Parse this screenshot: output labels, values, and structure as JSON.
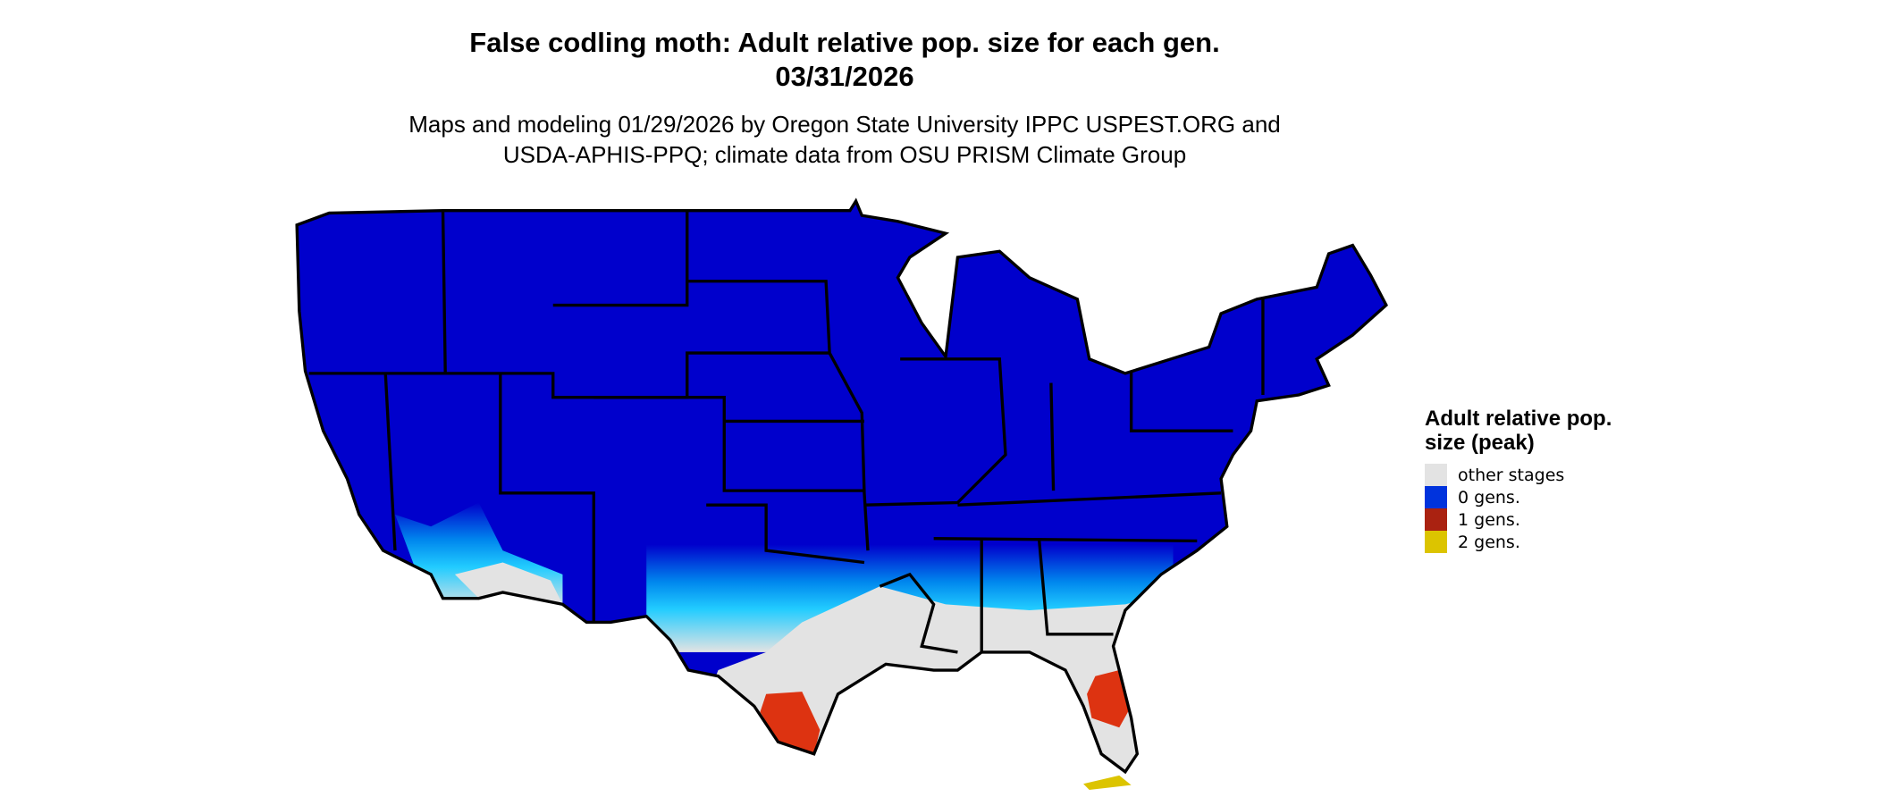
{
  "title_line1": "False codling moth: Adult relative pop. size for each gen.",
  "title_line2": "03/31/2026",
  "subtitle_line1": "Maps and modeling 01/29/2026 by Oregon State University IPPC USPEST.ORG and",
  "subtitle_line2": "USDA-APHIS-PPQ; climate data from OSU PRISM Climate Group",
  "map": {
    "region": "Contiguous United States",
    "boundaries": "state outlines"
  },
  "legend": {
    "title": "Adult relative pop. size (peak)",
    "items": [
      {
        "label": "other stages",
        "color": "#e3e3e3"
      },
      {
        "label": "0 gens.",
        "color": "#0033dd"
      },
      {
        "label": "1 gens.",
        "color": "#aa2211"
      },
      {
        "label": "2 gens.",
        "color": "#dcc400"
      }
    ]
  },
  "colors": {
    "fill_main": "#0000cc",
    "transition": "#00aaee",
    "red_patch": "#dd3311"
  }
}
